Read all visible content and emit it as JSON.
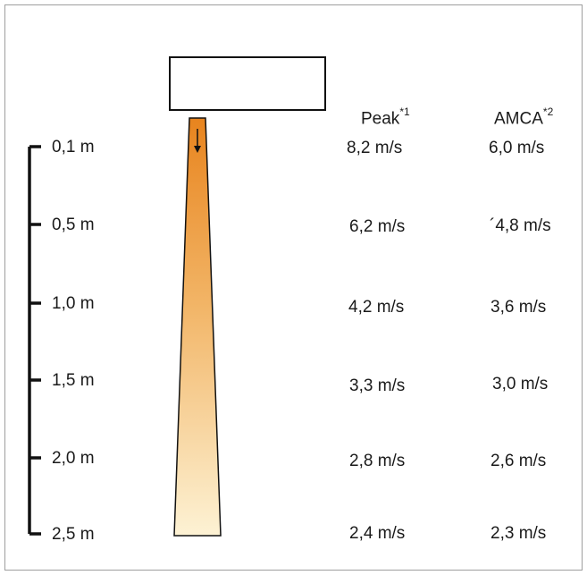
{
  "headers": {
    "peak": "Peak",
    "peak_note": "*1",
    "amca": "AMCA",
    "amca_note": "*2"
  },
  "rows": [
    {
      "distance": "0,1 m",
      "peak": "8,2 m/s",
      "amca": "6,0 m/s"
    },
    {
      "distance": "0,5 m",
      "peak": "6,2 m/s",
      "amca": "´4,8 m/s"
    },
    {
      "distance": "1,0 m",
      "peak": "4,2 m/s",
      "amca": "3,6 m/s"
    },
    {
      "distance": "1,5 m",
      "peak": "3,3 m/s",
      "amca": "3,0 m/s"
    },
    {
      "distance": "2,0 m",
      "peak": "2,8 m/s",
      "amca": "2,6 m/s"
    },
    {
      "distance": "2,5 m",
      "peak": "2,4 m/s",
      "amca": "2,3 m/s"
    }
  ],
  "colors": {
    "jet_top": "#e8841e",
    "jet_bottom": "#fdf2d4",
    "outline": "#111111"
  }
}
